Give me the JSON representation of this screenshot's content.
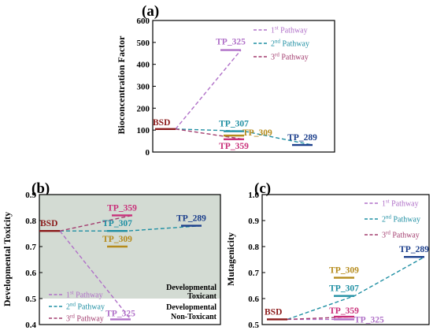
{
  "panels": [
    {
      "letter": "(a)",
      "ylabel": "Bioconcentration Factor"
    },
    {
      "letter": "(b)",
      "ylabel": "Developmental Toxicity",
      "region_upper": [
        "Developmental",
        "Toxicant"
      ],
      "region_lower": [
        "Developmental",
        "Non-Toxicant"
      ]
    },
    {
      "letter": "(c)",
      "ylabel": "Mutagenicity"
    }
  ],
  "legend": [
    {
      "ord": "1",
      "sup": "st",
      "text": " Pathway",
      "color": "#b070c8"
    },
    {
      "ord": "2",
      "sup": "nd",
      "text": " Pathway",
      "color": "#1f8fa3"
    },
    {
      "ord": "3",
      "sup": "rd",
      "text": " Pathway",
      "color": "#a33d6f"
    }
  ],
  "chart_data": [
    {
      "type": "line",
      "title": "(a)",
      "ylabel": "Bioconcentration Factor",
      "ylim": [
        0,
        600
      ],
      "yticks": [
        0,
        100,
        200,
        300,
        400,
        500,
        600
      ],
      "nodes": [
        {
          "name": "BSD",
          "value": 105,
          "color": "#8b1a1a"
        },
        {
          "name": "TP_325",
          "value": 465,
          "color": "#b070c8"
        },
        {
          "name": "TP_307",
          "value": 95,
          "color": "#1f8fa3"
        },
        {
          "name": "TP_309",
          "value": 75,
          "color": "#b58b1c"
        },
        {
          "name": "TP_359",
          "value": 58,
          "color": "#c9307a"
        },
        {
          "name": "TP_289",
          "value": 32,
          "color": "#1c3f8c"
        }
      ],
      "series": [
        {
          "name": "1st Pathway",
          "path": [
            "BSD",
            "TP_325"
          ]
        },
        {
          "name": "2nd Pathway",
          "path": [
            "BSD",
            "TP_307",
            "TP_289"
          ]
        },
        {
          "name": "3rd Pathway",
          "path": [
            "BSD",
            "TP_359"
          ]
        }
      ]
    },
    {
      "type": "line",
      "title": "(b)",
      "ylabel": "Developmental Toxicity",
      "ylim": [
        0.4,
        0.9
      ],
      "yticks": [
        0.4,
        0.5,
        0.6,
        0.7,
        0.8,
        0.9
      ],
      "threshold": 0.5,
      "nodes": [
        {
          "name": "BSD",
          "value": 0.76,
          "color": "#8b1a1a"
        },
        {
          "name": "TP_359",
          "value": 0.82,
          "color": "#c9307a"
        },
        {
          "name": "TP_307",
          "value": 0.76,
          "color": "#1f8fa3"
        },
        {
          "name": "TP_309",
          "value": 0.7,
          "color": "#b58b1c"
        },
        {
          "name": "TP_325",
          "value": 0.42,
          "color": "#b070c8"
        },
        {
          "name": "TP_289",
          "value": 0.78,
          "color": "#1c3f8c"
        }
      ],
      "series": [
        {
          "name": "1st Pathway",
          "path": [
            "BSD",
            "TP_325"
          ]
        },
        {
          "name": "2nd Pathway",
          "path": [
            "BSD",
            "TP_307",
            "TP_289"
          ]
        },
        {
          "name": "3rd Pathway",
          "path": [
            "BSD",
            "TP_359"
          ]
        }
      ]
    },
    {
      "type": "line",
      "title": "(c)",
      "ylabel": "Mutagenicity",
      "ylim": [
        0.5,
        1.0
      ],
      "yticks": [
        0.5,
        0.6,
        0.7,
        0.8,
        0.9,
        1.0
      ],
      "nodes": [
        {
          "name": "BSD",
          "value": 0.52,
          "color": "#8b1a1a"
        },
        {
          "name": "TP_309",
          "value": 0.68,
          "color": "#b58b1c"
        },
        {
          "name": "TP_307",
          "value": 0.61,
          "color": "#1f8fa3"
        },
        {
          "name": "TP_359",
          "value": 0.53,
          "color": "#c9307a"
        },
        {
          "name": "TP_325",
          "value": 0.52,
          "color": "#b070c8"
        },
        {
          "name": "TP_289",
          "value": 0.76,
          "color": "#1c3f8c"
        }
      ],
      "series": [
        {
          "name": "1st Pathway",
          "path": [
            "BSD",
            "TP_325"
          ]
        },
        {
          "name": "2nd Pathway",
          "path": [
            "BSD",
            "TP_307",
            "TP_289"
          ]
        },
        {
          "name": "3rd Pathway",
          "path": [
            "BSD",
            "TP_359"
          ]
        }
      ]
    }
  ]
}
